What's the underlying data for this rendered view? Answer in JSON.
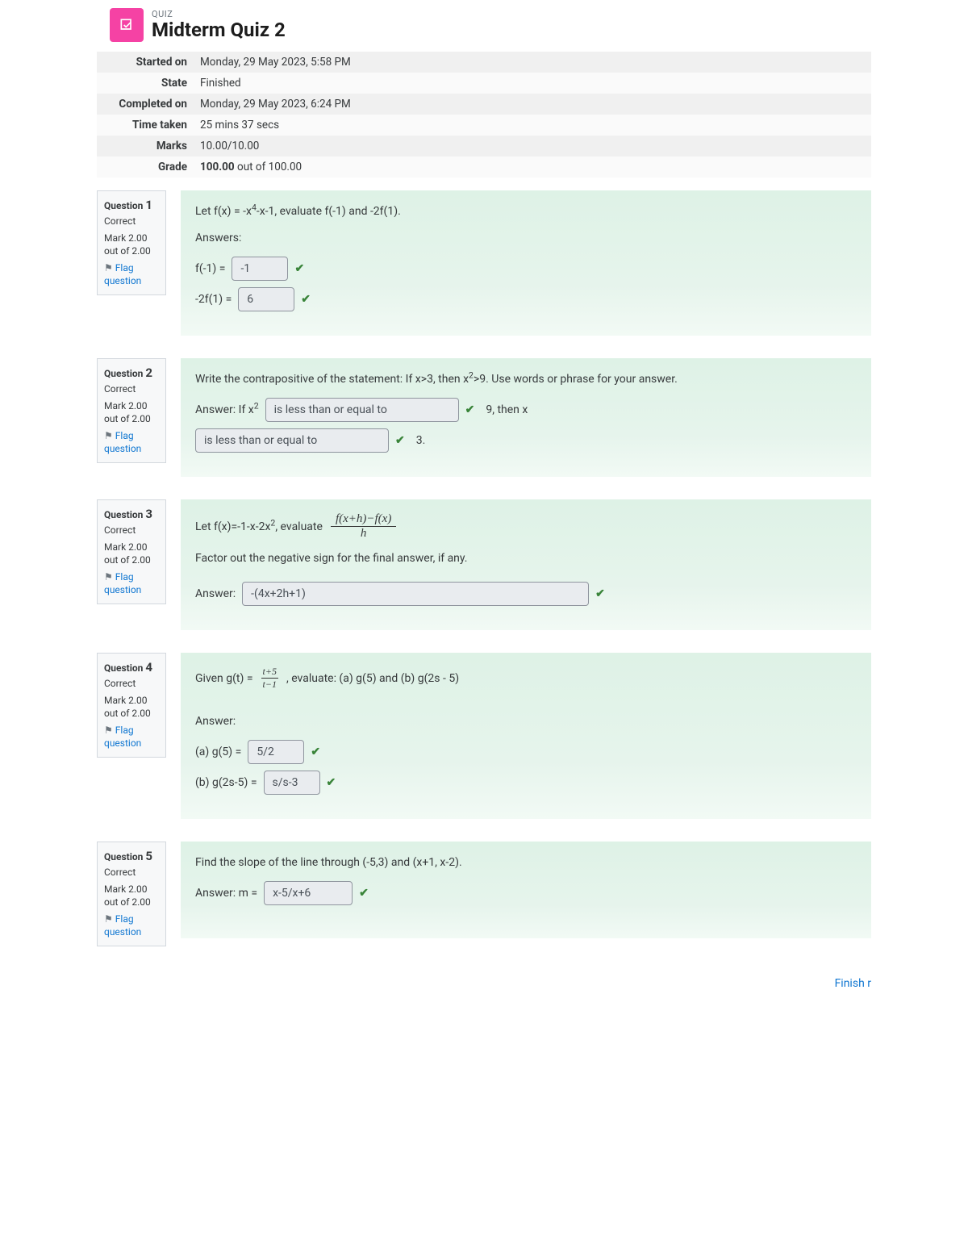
{
  "header": {
    "label": "QUIZ",
    "title": "Midterm Quiz 2",
    "icon_bg": "#f542a4"
  },
  "summary": {
    "rows": [
      {
        "label": "Started on",
        "value": "Monday, 29 May 2023, 5:58 PM"
      },
      {
        "label": "State",
        "value": "Finished"
      },
      {
        "label": "Completed on",
        "value": "Monday, 29 May 2023, 6:24 PM"
      },
      {
        "label": "Time taken",
        "value": "25 mins 37 secs"
      },
      {
        "label": "Marks",
        "value": "10.00/10.00"
      },
      {
        "label": "Grade",
        "value_bold": "100.00",
        "value_rest": " out of 100.00"
      }
    ]
  },
  "questions": [
    {
      "num": "1",
      "status": "Correct",
      "mark": "Mark 2.00 out of 2.00",
      "flag": "Flag question",
      "prompt": "Let f(x) = -x",
      "prompt_sup": "4",
      "prompt_after": "-x-1, evaluate f(-1) and -2f(1).",
      "answers_label": "Answers:",
      "rows": [
        {
          "lead": "f(-1) =",
          "val": "-1"
        },
        {
          "lead": "-2f(1) =",
          "val": "6"
        }
      ]
    },
    {
      "num": "2",
      "status": "Correct",
      "mark": "Mark 2.00 out of 2.00",
      "flag": "Flag question",
      "prompt": "Write the contrapositive of the statement: If x>3, then x",
      "prompt_sup": "2",
      "prompt_after": ">9.  Use words or phrase for your answer.",
      "line1_lead": "Answer: If x",
      "line1_sup": "2",
      "line1_val": "is less than or equal to",
      "line1_tail": "9, then x",
      "line2_val": "is less than or equal to",
      "line2_tail": "3."
    },
    {
      "num": "3",
      "status": "Correct",
      "mark": "Mark 2.00 out of 2.00",
      "flag": "Flag question",
      "prompt_pre": "Let f(x)=-1-x-2x",
      "prompt_sup": "2",
      "prompt_mid": ", evaluate",
      "frac_num": "f(x+h)−f(x)",
      "frac_den": "h",
      "hint": "Factor out the negative sign for the final answer, if any.",
      "ans_lead": "Answer:",
      "ans_val": "-(4x+2h+1)"
    },
    {
      "num": "4",
      "status": "Correct",
      "mark": "Mark 2.00 out of 2.00",
      "flag": "Flag question",
      "prompt_pre": "Given g(t) =",
      "frac_num": "t+5",
      "frac_den": "t−1",
      "prompt_post": ", evaluate: (a) g(5) and (b) g(2s - 5)",
      "answers_label": "Answer:",
      "rows": [
        {
          "lead": "(a)  g(5) =",
          "val": "5/2"
        },
        {
          "lead": "(b)  g(2s-5) =",
          "val": "s/s-3"
        }
      ]
    },
    {
      "num": "5",
      "status": "Correct",
      "mark": "Mark 2.00 out of 2.00",
      "flag": "Flag question",
      "prompt": "Find the slope of the line through (-5,3) and (x+1, x-2).",
      "ans_lead": "Answer: m =",
      "ans_val": "x-5/x+6"
    }
  ],
  "q_label": "Question",
  "footer": {
    "finish": "Finish r"
  }
}
